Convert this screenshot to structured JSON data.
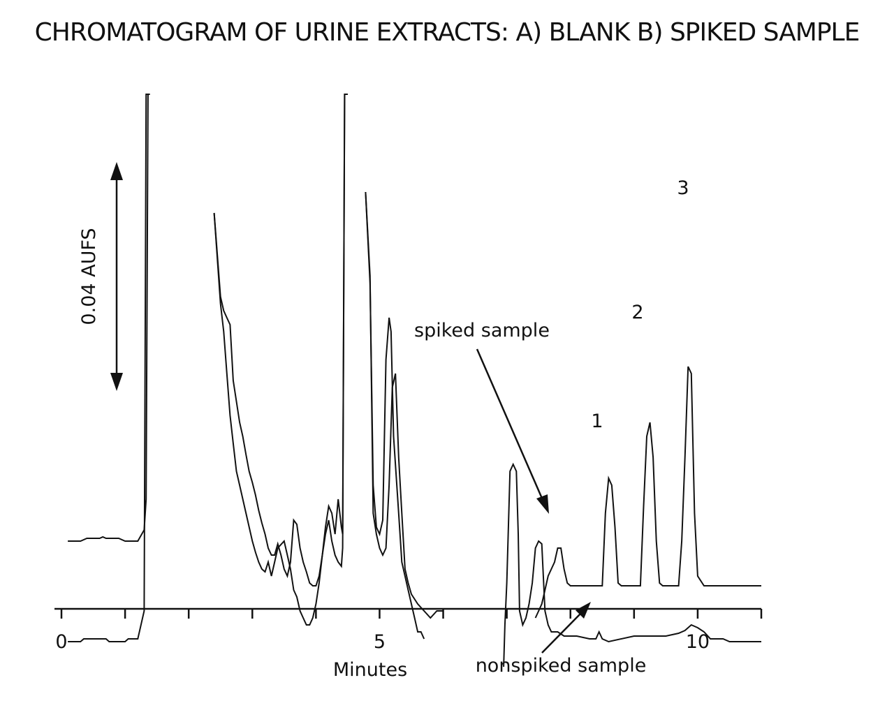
{
  "chart_data": {
    "type": "line",
    "title": "CHROMATOGRAM OF URINE EXTRACTS: A) BLANK B) SPIKED SAMPLE",
    "xlabel": "Minutes",
    "ylabel": "",
    "xlim": [
      0,
      11
    ],
    "x_ticks": [
      0,
      1,
      2,
      3,
      4,
      5,
      6,
      7,
      8,
      9,
      10,
      11
    ],
    "x_tick_labels": [
      {
        "x": 0,
        "label": "0"
      },
      {
        "x": 5,
        "label": "5"
      },
      {
        "x": 10,
        "label": "10"
      }
    ],
    "scale_bar_label": "0.04 AUFS",
    "peak_labels": [
      {
        "x": 8.5,
        "label": "1"
      },
      {
        "x": 9.1,
        "label": "2"
      },
      {
        "x": 9.8,
        "label": "3"
      }
    ],
    "annotations": [
      {
        "text": "spiked sample",
        "target_x": 7.6
      },
      {
        "text": "nonspiked sample",
        "target_x": 8.3
      }
    ],
    "series": [
      {
        "name": "",
        "segments": [
          [
            [
              0.1,
              0.0
            ],
            [
              0.3,
              0.0
            ],
            [
              0.4,
              0.02
            ],
            [
              0.6,
              0.02
            ],
            [
              0.65,
              0.03
            ],
            [
              0.7,
              0.02
            ],
            [
              0.9,
              0.02
            ],
            [
              1.0,
              0.0
            ],
            [
              1.2,
              0.0
            ],
            [
              1.3,
              0.08
            ],
            [
              1.33,
              0.3
            ],
            [
              1.36,
              3.2
            ],
            [
              1.39,
              3.2
            ]
          ],
          [
            [
              2.4,
              2.35
            ],
            [
              2.5,
              1.75
            ],
            [
              2.55,
              1.65
            ],
            [
              2.6,
              1.6
            ],
            [
              2.65,
              1.55
            ],
            [
              2.7,
              1.15
            ],
            [
              2.75,
              1.0
            ],
            [
              2.8,
              0.85
            ],
            [
              2.85,
              0.75
            ],
            [
              2.9,
              0.62
            ],
            [
              2.95,
              0.5
            ],
            [
              3.0,
              0.42
            ],
            [
              3.05,
              0.33
            ],
            [
              3.1,
              0.22
            ],
            [
              3.15,
              0.13
            ],
            [
              3.2,
              0.05
            ],
            [
              3.25,
              -0.05
            ],
            [
              3.3,
              -0.1
            ],
            [
              3.35,
              -0.1
            ],
            [
              3.4,
              -0.02
            ],
            [
              3.45,
              -0.1
            ],
            [
              3.5,
              -0.2
            ],
            [
              3.55,
              -0.25
            ],
            [
              3.6,
              -0.15
            ],
            [
              3.65,
              0.15
            ],
            [
              3.7,
              0.12
            ],
            [
              3.75,
              -0.05
            ],
            [
              3.8,
              -0.15
            ],
            [
              3.85,
              -0.22
            ],
            [
              3.9,
              -0.3
            ],
            [
              3.95,
              -0.32
            ],
            [
              4.0,
              -0.32
            ],
            [
              4.05,
              -0.25
            ],
            [
              4.1,
              -0.1
            ],
            [
              4.15,
              0.1
            ],
            [
              4.2,
              0.25
            ],
            [
              4.25,
              0.2
            ],
            [
              4.3,
              0.05
            ],
            [
              4.35,
              0.3
            ],
            [
              4.4,
              0.1
            ],
            [
              4.42,
              0.05
            ],
            [
              4.45,
              3.2
            ],
            [
              4.5,
              3.2
            ]
          ],
          [
            [
              4.78,
              2.5
            ],
            [
              4.85,
              1.85
            ],
            [
              4.9,
              0.4
            ],
            [
              4.95,
              0.1
            ],
            [
              5.0,
              0.05
            ],
            [
              5.05,
              0.15
            ],
            [
              5.1,
              1.3
            ],
            [
              5.15,
              1.6
            ],
            [
              5.18,
              1.5
            ],
            [
              5.22,
              0.75
            ],
            [
              5.3,
              0.2
            ],
            [
              5.35,
              -0.15
            ],
            [
              5.45,
              -0.35
            ],
            [
              5.55,
              -0.55
            ],
            [
              5.6,
              -0.65
            ],
            [
              5.65,
              -0.65
            ],
            [
              5.7,
              -0.7
            ]
          ],
          [
            [
              6.95,
              -0.9
            ],
            [
              6.97,
              -0.6
            ],
            [
              7.0,
              -0.3
            ],
            [
              7.05,
              0.5
            ],
            [
              7.1,
              0.55
            ],
            [
              7.15,
              0.5
            ],
            [
              7.18,
              0.05
            ],
            [
              7.2,
              -0.5
            ],
            [
              7.25,
              -0.6
            ],
            [
              7.3,
              -0.55
            ],
            [
              7.35,
              -0.45
            ],
            [
              7.4,
              -0.3
            ],
            [
              7.45,
              -0.05
            ],
            [
              7.5,
              0.0
            ],
            [
              7.55,
              -0.02
            ],
            [
              7.6,
              -0.5
            ],
            [
              7.65,
              -0.6
            ],
            [
              7.7,
              -0.65
            ],
            [
              7.8,
              -0.65
            ],
            [
              7.9,
              -0.68
            ],
            [
              8.0,
              -0.68
            ],
            [
              8.1,
              -0.68
            ],
            [
              8.3,
              -0.7
            ],
            [
              8.4,
              -0.7
            ],
            [
              8.45,
              -0.65
            ],
            [
              8.5,
              -0.7
            ],
            [
              8.6,
              -0.72
            ],
            [
              9.0,
              -0.68
            ],
            [
              9.5,
              -0.68
            ],
            [
              9.7,
              -0.66
            ],
            [
              9.8,
              -0.64
            ],
            [
              9.9,
              -0.6
            ],
            [
              10.0,
              -0.62
            ],
            [
              10.1,
              -0.65
            ],
            [
              10.2,
              -0.7
            ],
            [
              10.4,
              -0.7
            ],
            [
              10.5,
              -0.72
            ],
            [
              11.0,
              -0.72
            ]
          ]
        ]
      },
      {
        "name": "",
        "segments": [
          [
            [
              0.1,
              -0.72
            ],
            [
              0.3,
              -0.72
            ],
            [
              0.35,
              -0.7
            ],
            [
              0.7,
              -0.7
            ],
            [
              0.75,
              -0.72
            ],
            [
              1.0,
              -0.72
            ],
            [
              1.05,
              -0.7
            ],
            [
              1.2,
              -0.7
            ],
            [
              1.3,
              -0.5
            ],
            [
              1.33,
              3.2
            ],
            [
              1.39,
              3.2
            ]
          ],
          [
            [
              2.4,
              2.35
            ],
            [
              2.5,
              1.7
            ],
            [
              2.55,
              1.5
            ],
            [
              2.6,
              1.2
            ],
            [
              2.65,
              0.9
            ],
            [
              2.7,
              0.7
            ],
            [
              2.75,
              0.5
            ],
            [
              2.8,
              0.4
            ],
            [
              2.9,
              0.2
            ],
            [
              3.0,
              0.0
            ],
            [
              3.05,
              -0.08
            ],
            [
              3.1,
              -0.15
            ],
            [
              3.15,
              -0.2
            ],
            [
              3.2,
              -0.22
            ],
            [
              3.25,
              -0.15
            ],
            [
              3.3,
              -0.25
            ],
            [
              3.35,
              -0.15
            ],
            [
              3.4,
              -0.05
            ],
            [
              3.5,
              0.0
            ],
            [
              3.55,
              -0.1
            ],
            [
              3.6,
              -0.2
            ],
            [
              3.65,
              -0.35
            ],
            [
              3.7,
              -0.4
            ],
            [
              3.75,
              -0.5
            ],
            [
              3.8,
              -0.55
            ],
            [
              3.85,
              -0.6
            ],
            [
              3.9,
              -0.6
            ],
            [
              3.95,
              -0.55
            ],
            [
              4.0,
              -0.45
            ],
            [
              4.05,
              -0.3
            ],
            [
              4.1,
              -0.1
            ],
            [
              4.15,
              0.05
            ],
            [
              4.2,
              0.15
            ],
            [
              4.25,
              0.0
            ],
            [
              4.3,
              -0.1
            ],
            [
              4.35,
              -0.15
            ],
            [
              4.4,
              -0.18
            ],
            [
              4.42,
              -0.05
            ],
            [
              4.45,
              3.2
            ],
            [
              4.5,
              3.2
            ]
          ],
          [
            [
              4.78,
              2.5
            ],
            [
              4.85,
              1.9
            ],
            [
              4.9,
              0.2
            ],
            [
              4.95,
              0.05
            ],
            [
              5.0,
              -0.05
            ],
            [
              5.05,
              -0.1
            ],
            [
              5.1,
              -0.05
            ],
            [
              5.15,
              0.4
            ],
            [
              5.2,
              1.1
            ],
            [
              5.25,
              1.2
            ],
            [
              5.3,
              0.6
            ],
            [
              5.35,
              0.2
            ],
            [
              5.4,
              -0.2
            ],
            [
              5.45,
              -0.3
            ],
            [
              5.5,
              -0.38
            ],
            [
              5.6,
              -0.45
            ],
            [
              5.7,
              -0.5
            ],
            [
              5.8,
              -0.55
            ],
            [
              5.9,
              -0.5
            ],
            [
              6.0,
              -0.5
            ]
          ],
          [
            [
              7.45,
              -0.55
            ],
            [
              7.5,
              -0.5
            ],
            [
              7.55,
              -0.45
            ],
            [
              7.6,
              -0.35
            ],
            [
              7.65,
              -0.25
            ],
            [
              7.7,
              -0.2
            ],
            [
              7.75,
              -0.15
            ],
            [
              7.8,
              -0.05
            ],
            [
              7.85,
              -0.05
            ],
            [
              7.9,
              -0.2
            ],
            [
              7.95,
              -0.3
            ],
            [
              8.0,
              -0.32
            ],
            [
              8.1,
              -0.32
            ],
            [
              8.2,
              -0.32
            ],
            [
              8.3,
              -0.32
            ],
            [
              8.4,
              -0.32
            ],
            [
              8.5,
              -0.32
            ],
            [
              8.55,
              0.2
            ],
            [
              8.6,
              0.45
            ],
            [
              8.65,
              0.4
            ],
            [
              8.7,
              0.1
            ],
            [
              8.75,
              -0.3
            ],
            [
              8.8,
              -0.32
            ],
            [
              9.0,
              -0.32
            ],
            [
              9.1,
              -0.32
            ],
            [
              9.15,
              0.25
            ],
            [
              9.2,
              0.75
            ],
            [
              9.25,
              0.85
            ],
            [
              9.3,
              0.6
            ],
            [
              9.35,
              0.0
            ],
            [
              9.4,
              -0.3
            ],
            [
              9.45,
              -0.32
            ],
            [
              9.6,
              -0.32
            ],
            [
              9.7,
              -0.32
            ],
            [
              9.75,
              0.0
            ],
            [
              9.8,
              0.6
            ],
            [
              9.85,
              1.25
            ],
            [
              9.9,
              1.2
            ],
            [
              9.95,
              0.2
            ],
            [
              10.0,
              -0.25
            ],
            [
              10.1,
              -0.32
            ],
            [
              10.5,
              -0.32
            ],
            [
              11.0,
              -0.32
            ]
          ]
        ]
      }
    ]
  }
}
